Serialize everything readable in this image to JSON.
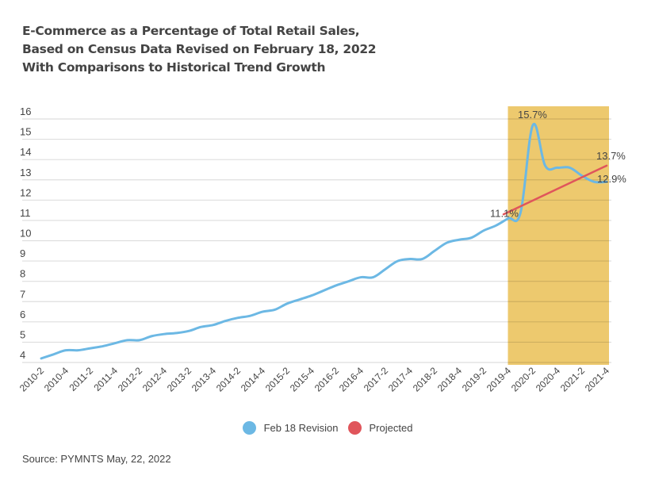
{
  "title_lines": [
    "E-Commerce as a Percentage of Total Retail Sales,",
    "Based on Census Data Revised on February 18, 2022",
    "With Comparisons to Historical Trend Growth"
  ],
  "source": "Source: PYMNTS May, 22, 2022",
  "colors": {
    "revision": "#6cb8e4",
    "projected": "#e0555b",
    "highlight": "#edc96e",
    "grid": "#dddddd",
    "text": "#444444"
  },
  "chart_data": {
    "type": "line",
    "title": "E-Commerce as a Percentage of Total Retail Sales, Based on Census Data Revised on February 18, 2022 With Comparisons to Historical Trend Growth",
    "xlabel": "",
    "ylabel": "",
    "ylim": [
      4,
      16
    ],
    "yticks": [
      4,
      5,
      6,
      7,
      8,
      9,
      10,
      11,
      12,
      13,
      14,
      15,
      16
    ],
    "grid": true,
    "legend_position": "bottom",
    "x": [
      "2010-2",
      "2010-3",
      "2010-4",
      "2011-1",
      "2011-2",
      "2011-3",
      "2011-4",
      "2012-1",
      "2012-2",
      "2012-3",
      "2012-4",
      "2013-1",
      "2013-2",
      "2013-3",
      "2013-4",
      "2014-1",
      "2014-2",
      "2014-3",
      "2014-4",
      "2015-1",
      "2015-2",
      "2015-3",
      "2015-4",
      "2016-1",
      "2016-2",
      "2016-3",
      "2016-4",
      "2017-1",
      "2017-2",
      "2017-3",
      "2017-4",
      "2018-1",
      "2018-2",
      "2018-3",
      "2018-4",
      "2019-1",
      "2019-2",
      "2019-3",
      "2019-4",
      "2020-1",
      "2020-2",
      "2020-3",
      "2020-4",
      "2021-1",
      "2021-2",
      "2021-3",
      "2021-4"
    ],
    "xtick_labels": [
      "2010-2",
      "2010-4",
      "2011-2",
      "2011-4",
      "2012-2",
      "2012-4",
      "2013-2",
      "2013-4",
      "2014-2",
      "2014-4",
      "2015-2",
      "2015-4",
      "2016-2",
      "2016-4",
      "2017-2",
      "2017-4",
      "2018-2",
      "2018-4",
      "2019-2",
      "2019-4",
      "2020-2",
      "2020-4",
      "2021-2",
      "2021-4"
    ],
    "series": [
      {
        "name": "Feb 18 Revision",
        "color": "#6cb8e4",
        "values": [
          4.2,
          4.4,
          4.6,
          4.6,
          4.7,
          4.8,
          4.95,
          5.1,
          5.1,
          5.3,
          5.4,
          5.45,
          5.55,
          5.75,
          5.85,
          6.05,
          6.2,
          6.3,
          6.5,
          6.6,
          6.9,
          7.1,
          7.3,
          7.55,
          7.8,
          8.0,
          8.2,
          8.2,
          8.6,
          9.0,
          9.1,
          9.1,
          9.5,
          9.9,
          10.05,
          10.15,
          10.5,
          10.75,
          11.1,
          11.4,
          15.7,
          13.7,
          13.6,
          13.6,
          13.2,
          12.9,
          12.9
        ]
      },
      {
        "name": "Projected",
        "color": "#e0555b",
        "x": [
          "2019-4",
          "2021-4"
        ],
        "values": [
          11.3,
          13.7
        ]
      }
    ],
    "highlight_range": [
      "2019-4",
      "2021-4"
    ],
    "annotations": [
      {
        "x": "2019-4",
        "label": "11.1%"
      },
      {
        "x": "2020-2",
        "label": "15.7%"
      },
      {
        "x": "2021-4",
        "label": "13.7%",
        "series": "Projected"
      },
      {
        "x": "2021-4",
        "label": "12.9%",
        "series": "Feb 18 Revision"
      }
    ]
  }
}
